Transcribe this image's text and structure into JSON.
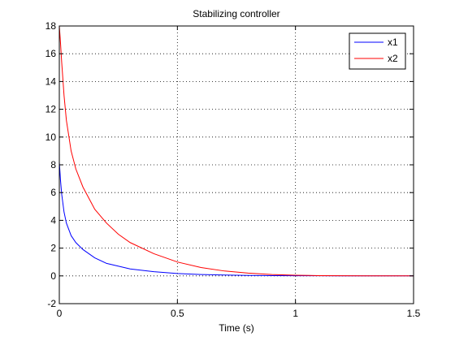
{
  "chart_data": {
    "type": "line",
    "title": "Stabilizing controller",
    "xlabel": "Time (s)",
    "ylabel": "",
    "xlim": [
      0,
      1.5
    ],
    "ylim": [
      -2,
      18
    ],
    "xticks": [
      0,
      0.5,
      1,
      1.5
    ],
    "xtick_labels": [
      "0",
      "0.5",
      "1",
      "1.5"
    ],
    "yticks": [
      -2,
      0,
      2,
      4,
      6,
      8,
      10,
      12,
      14,
      16,
      18
    ],
    "ytick_labels": [
      "-2",
      "0",
      "2",
      "4",
      "6",
      "8",
      "10",
      "12",
      "14",
      "16",
      "18"
    ],
    "grid": true,
    "legend_position": "top-right",
    "series": [
      {
        "name": "x1",
        "color": "#0000ff",
        "x": [
          0,
          0.005,
          0.01,
          0.02,
          0.03,
          0.05,
          0.07,
          0.1,
          0.15,
          0.2,
          0.3,
          0.4,
          0.5,
          0.6,
          0.7,
          0.8,
          0.9,
          1.0,
          1.1,
          1.2,
          1.3,
          1.4,
          1.5
        ],
        "y": [
          8.2,
          6.9,
          5.9,
          4.6,
          3.8,
          2.9,
          2.4,
          1.9,
          1.3,
          0.9,
          0.5,
          0.3,
          0.17,
          0.1,
          0.06,
          0.035,
          0.02,
          0.012,
          0.007,
          0.004,
          0.002,
          0.001,
          0.0
        ]
      },
      {
        "name": "x2",
        "color": "#ff0000",
        "x": [
          0,
          0.005,
          0.01,
          0.02,
          0.03,
          0.05,
          0.07,
          0.1,
          0.15,
          0.2,
          0.25,
          0.3,
          0.4,
          0.5,
          0.6,
          0.7,
          0.8,
          0.9,
          1.0,
          1.1,
          1.2,
          1.3,
          1.4,
          1.5
        ],
        "y": [
          18.0,
          16.8,
          15.4,
          13.0,
          11.2,
          9.0,
          7.7,
          6.4,
          4.8,
          3.8,
          3.0,
          2.4,
          1.6,
          1.0,
          0.6,
          0.35,
          0.2,
          0.1,
          0.05,
          0.02,
          0.01,
          0.005,
          0.002,
          0.0
        ]
      }
    ]
  }
}
